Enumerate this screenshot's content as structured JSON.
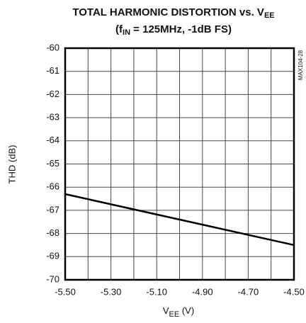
{
  "chart_data": {
    "type": "line",
    "title": [
      "TOTAL HARMONIC DISTORTION vs. V",
      "EE"
    ],
    "subtitle": [
      "(f",
      "IN",
      " = 125MHz, -1dB FS)"
    ],
    "xlabel": [
      "V",
      "EE",
      " (V)"
    ],
    "ylabel": "THD (dB)",
    "note": "MAX104-28",
    "xlim": [
      -5.5,
      -4.5
    ],
    "ylim": [
      -70,
      -60
    ],
    "xticks": [
      {
        "value": -5.5,
        "label": "-5.50"
      },
      {
        "value": -5.3,
        "label": "-5.30"
      },
      {
        "value": -5.1,
        "label": "-5.10"
      },
      {
        "value": -4.9,
        "label": "-4.90"
      },
      {
        "value": -4.7,
        "label": "-4.70"
      },
      {
        "value": -4.5,
        "label": "-4.50"
      }
    ],
    "x_minor_ticks": [
      -5.4,
      -5.2,
      -5.0,
      -4.8,
      -4.6
    ],
    "yticks": [
      -70,
      -69,
      -68,
      -67,
      -66,
      -65,
      -64,
      -63,
      -62,
      -61,
      -60
    ],
    "grid": true,
    "series": [
      {
        "color": "#000000",
        "x": [
          -5.5,
          -4.5
        ],
        "values": [
          -66.3,
          -68.5
        ]
      }
    ]
  }
}
